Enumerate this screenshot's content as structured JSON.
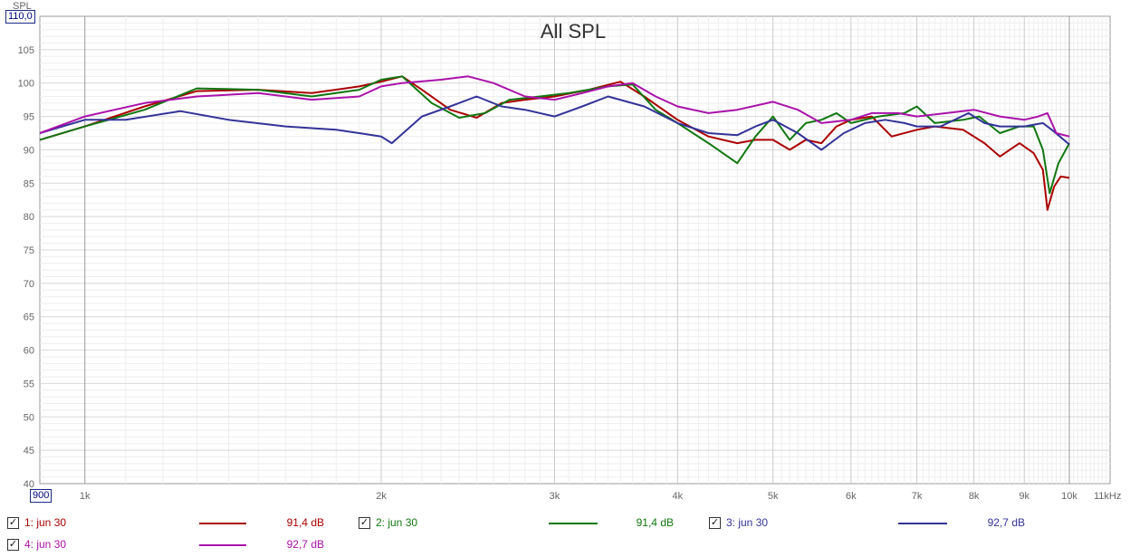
{
  "chart_data": {
    "type": "line",
    "title": "All SPL",
    "ylabel": "SPL",
    "xlabel": "",
    "x_scale": "log",
    "xlim": [
      900,
      11000
    ],
    "ylim": [
      40,
      110
    ],
    "y_max_box": "110,0",
    "x_min_box": "900",
    "y_ticks": [
      40,
      45,
      50,
      55,
      60,
      65,
      70,
      75,
      80,
      85,
      90,
      95,
      100,
      105
    ],
    "x_ticks": [
      {
        "value": 1000,
        "label": "1k"
      },
      {
        "value": 2000,
        "label": "2k"
      },
      {
        "value": 3000,
        "label": "3k"
      },
      {
        "value": 4000,
        "label": "4k"
      },
      {
        "value": 5000,
        "label": "5k"
      },
      {
        "value": 6000,
        "label": "6k"
      },
      {
        "value": 7000,
        "label": "7k"
      },
      {
        "value": 8000,
        "label": "8k"
      },
      {
        "value": 9000,
        "label": "9k"
      },
      {
        "value": 10000,
        "label": "10k"
      },
      {
        "value": 11000,
        "label": "11kHz"
      }
    ],
    "grid": true,
    "series": [
      {
        "name": "1: jun 30",
        "color": "#aa0000",
        "level": "91,4 dB",
        "points": [
          [
            900,
            91.5
          ],
          [
            1000,
            93.5
          ],
          [
            1150,
            96.5
          ],
          [
            1300,
            98.8
          ],
          [
            1500,
            99
          ],
          [
            1700,
            98.5
          ],
          [
            1900,
            99.5
          ],
          [
            2000,
            100.2
          ],
          [
            2100,
            101
          ],
          [
            2200,
            99
          ],
          [
            2350,
            96
          ],
          [
            2500,
            94.8
          ],
          [
            2650,
            97
          ],
          [
            2800,
            97.5
          ],
          [
            3000,
            98
          ],
          [
            3250,
            99
          ],
          [
            3500,
            100.2
          ],
          [
            3700,
            98
          ],
          [
            4000,
            94.5
          ],
          [
            4300,
            92
          ],
          [
            4600,
            91
          ],
          [
            4800,
            91.5
          ],
          [
            5000,
            91.5
          ],
          [
            5200,
            90
          ],
          [
            5400,
            91.5
          ],
          [
            5600,
            91
          ],
          [
            5800,
            93.5
          ],
          [
            6000,
            94.5
          ],
          [
            6300,
            95
          ],
          [
            6600,
            92
          ],
          [
            7000,
            93
          ],
          [
            7300,
            93.5
          ],
          [
            7800,
            93
          ],
          [
            8200,
            91
          ],
          [
            8500,
            89
          ],
          [
            8900,
            91
          ],
          [
            9200,
            89.5
          ],
          [
            9400,
            87
          ],
          [
            9500,
            81
          ],
          [
            9650,
            84.5
          ],
          [
            9800,
            86
          ],
          [
            10000,
            85.8
          ]
        ]
      },
      {
        "name": "2: jun 30",
        "color": "#117711",
        "level": "91,4 dB",
        "points": [
          [
            900,
            91.5
          ],
          [
            1000,
            93.5
          ],
          [
            1150,
            96
          ],
          [
            1300,
            99.2
          ],
          [
            1500,
            99
          ],
          [
            1700,
            98
          ],
          [
            1900,
            99
          ],
          [
            2000,
            100.5
          ],
          [
            2100,
            101
          ],
          [
            2250,
            97
          ],
          [
            2400,
            94.8
          ],
          [
            2550,
            95.5
          ],
          [
            2700,
            97.5
          ],
          [
            2900,
            98
          ],
          [
            3100,
            98.5
          ],
          [
            3400,
            99.5
          ],
          [
            3600,
            99.8
          ],
          [
            3800,
            96
          ],
          [
            4000,
            94
          ],
          [
            4300,
            91
          ],
          [
            4600,
            88
          ],
          [
            4800,
            92
          ],
          [
            5000,
            95
          ],
          [
            5200,
            91.5
          ],
          [
            5400,
            94
          ],
          [
            5600,
            94.5
          ],
          [
            5800,
            95.5
          ],
          [
            6000,
            94
          ],
          [
            6400,
            95
          ],
          [
            6800,
            95.5
          ],
          [
            7000,
            96.5
          ],
          [
            7300,
            94
          ],
          [
            7800,
            94.5
          ],
          [
            8100,
            95
          ],
          [
            8500,
            92.5
          ],
          [
            8900,
            93.5
          ],
          [
            9200,
            93.5
          ],
          [
            9400,
            90
          ],
          [
            9550,
            83.5
          ],
          [
            9750,
            88
          ],
          [
            10000,
            91
          ]
        ]
      },
      {
        "name": "3: jun 30",
        "color": "#333399",
        "level": "92,7 dB",
        "points": [
          [
            900,
            92.5
          ],
          [
            1000,
            94.5
          ],
          [
            1100,
            94.5
          ],
          [
            1250,
            95.8
          ],
          [
            1400,
            94.5
          ],
          [
            1600,
            93.5
          ],
          [
            1800,
            93
          ],
          [
            1900,
            92.5
          ],
          [
            2000,
            92
          ],
          [
            2050,
            91
          ],
          [
            2200,
            95
          ],
          [
            2350,
            96.5
          ],
          [
            2500,
            98
          ],
          [
            2650,
            96.5
          ],
          [
            2800,
            96
          ],
          [
            3000,
            95
          ],
          [
            3200,
            96.5
          ],
          [
            3400,
            98
          ],
          [
            3700,
            96.5
          ],
          [
            4000,
            94
          ],
          [
            4300,
            92.5
          ],
          [
            4600,
            92.2
          ],
          [
            4800,
            93.5
          ],
          [
            5000,
            94.5
          ],
          [
            5300,
            92.5
          ],
          [
            5600,
            90
          ],
          [
            5900,
            92.5
          ],
          [
            6200,
            94
          ],
          [
            6500,
            94.5
          ],
          [
            6800,
            94
          ],
          [
            7000,
            93.5
          ],
          [
            7400,
            93.5
          ],
          [
            7900,
            95.5
          ],
          [
            8200,
            94
          ],
          [
            8500,
            93.5
          ],
          [
            9000,
            93.5
          ],
          [
            9400,
            94
          ],
          [
            9600,
            93
          ],
          [
            10000,
            90.8
          ]
        ]
      },
      {
        "name": "4: jun 30",
        "color": "#aa11aa",
        "level": "92,7 dB",
        "points": [
          [
            900,
            92.5
          ],
          [
            1000,
            95
          ],
          [
            1150,
            97
          ],
          [
            1300,
            98
          ],
          [
            1500,
            98.5
          ],
          [
            1700,
            97.5
          ],
          [
            1900,
            98
          ],
          [
            2000,
            99.5
          ],
          [
            2100,
            100
          ],
          [
            2300,
            100.5
          ],
          [
            2450,
            101
          ],
          [
            2600,
            100
          ],
          [
            2800,
            98
          ],
          [
            3000,
            97.5
          ],
          [
            3200,
            98.5
          ],
          [
            3400,
            99.5
          ],
          [
            3600,
            100
          ],
          [
            3800,
            98
          ],
          [
            4000,
            96.5
          ],
          [
            4300,
            95.5
          ],
          [
            4600,
            96
          ],
          [
            5000,
            97.2
          ],
          [
            5300,
            96
          ],
          [
            5600,
            94
          ],
          [
            6000,
            94.5
          ],
          [
            6300,
            95.5
          ],
          [
            6700,
            95.5
          ],
          [
            7000,
            95
          ],
          [
            7500,
            95.5
          ],
          [
            8000,
            96
          ],
          [
            8500,
            95
          ],
          [
            9000,
            94.5
          ],
          [
            9300,
            95
          ],
          [
            9500,
            95.5
          ],
          [
            9700,
            92.5
          ],
          [
            10000,
            92
          ]
        ]
      }
    ]
  }
}
